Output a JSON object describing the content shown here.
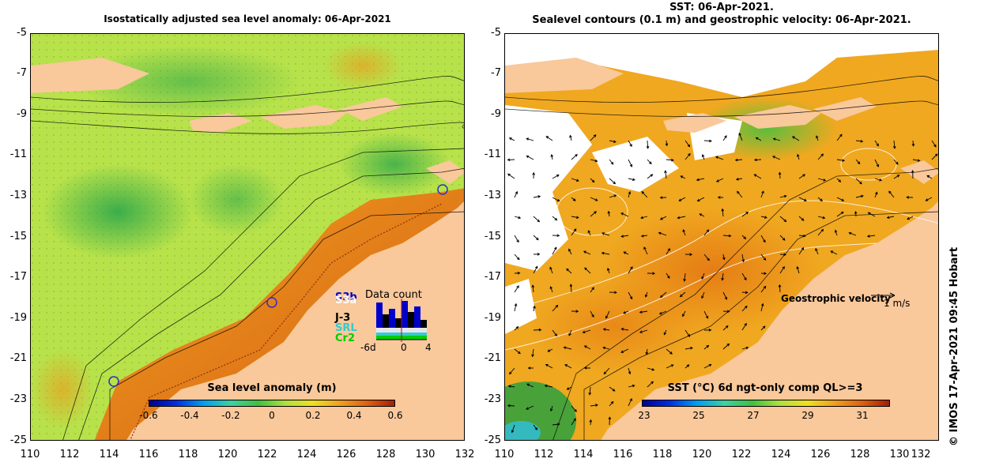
{
  "left_panel": {
    "title": "Isostatically adjusted sea level anomaly: 06-Apr-2021",
    "colorbar": {
      "title": "Sea level anomaly (m)",
      "ticks": [
        "-0.6",
        "-0.4",
        "-0.2",
        "0",
        "0.2",
        "0.4",
        "0.6"
      ],
      "range": [
        -0.6,
        0.6
      ]
    },
    "data_count": {
      "title": "Data count",
      "missions": [
        {
          "name": "S3b",
          "color": "#0000cc"
        },
        {
          "name": "S3a",
          "color": "#ffffff"
        },
        {
          "name": "J-3",
          "color": "#000000"
        },
        {
          "name": "SRL",
          "color": "#33cccc"
        },
        {
          "name": "Cr2",
          "color": "#00cc00"
        }
      ],
      "axis_labels": [
        "-6d",
        "0",
        "4"
      ]
    }
  },
  "right_panel": {
    "title_line1": "SST: 06-Apr-2021.",
    "title_line2": "Sealevel contours (0.1 m) and geostrophic velocity: 06-Apr-2021.",
    "velocity_label": "Geostrophic velocity",
    "velocity_scale": "1 m/s",
    "colorbar": {
      "title": "SST (°C) 6d ngt-only comp QL>=3",
      "ticks": [
        "23",
        "25",
        "27",
        "29",
        "31"
      ],
      "range": [
        23,
        32
      ]
    }
  },
  "axes": {
    "lat_labels": [
      "-5",
      "-7",
      "-9",
      "-11",
      "-13",
      "-15",
      "-17",
      "-19",
      "-21",
      "-23",
      "-25"
    ],
    "lon_labels": [
      "110",
      "112",
      "114",
      "116",
      "118",
      "120",
      "122",
      "124",
      "126",
      "128",
      "130",
      "132"
    ],
    "lat_range": [
      -25,
      -5
    ],
    "lon_range": [
      110,
      132
    ]
  },
  "credit": "© IMOS 17-Apr-2021 09:45 Hobart",
  "colors": {
    "land": "#f9c89b",
    "sla_bg": "#b7e24a",
    "sst_bg": "#f0a820"
  }
}
